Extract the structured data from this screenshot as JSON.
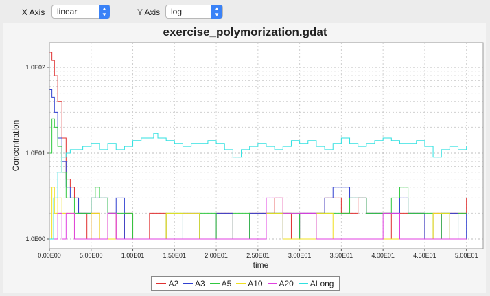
{
  "toolbar": {
    "x_axis_label": "X Axis",
    "x_axis_value": "linear",
    "y_axis_label": "Y Axis",
    "y_axis_value": "log"
  },
  "chart_data": {
    "type": "line",
    "title": "exercise_polymorization.gdat",
    "xlabel": "time",
    "ylabel": "Concentration",
    "xlim": [
      0,
      52
    ],
    "ylim_log10": [
      -0.1,
      0.22
    ],
    "y_scale": "log",
    "grid": true,
    "legend_placement": "bottom",
    "x_ticks": [
      0,
      5,
      10,
      15,
      20,
      25,
      30,
      35,
      40,
      45,
      50
    ],
    "x_tick_labels": [
      "0.00E00",
      "5.00E00",
      "1.00E01",
      "1.50E01",
      "2.00E01",
      "2.50E01",
      "3.00E01",
      "3.50E01",
      "4.00E01",
      "4.50E01",
      "5.00E01"
    ],
    "y_ticks": [
      1,
      10,
      100
    ],
    "y_tick_labels": [
      "1.0E00",
      "1.0E01",
      "1.0E02"
    ],
    "series": [
      {
        "name": "A2",
        "color": "#e03030",
        "x": [
          0,
          0.3,
          0.6,
          1,
          1.5,
          2,
          2.5,
          3,
          3.5,
          4,
          4.5,
          5,
          6,
          7,
          8,
          9,
          10,
          12,
          14,
          16,
          18,
          20,
          22,
          24,
          25,
          26,
          27,
          28,
          29,
          30,
          31,
          32,
          33,
          34,
          35,
          36,
          37,
          38,
          39,
          40,
          41,
          42,
          43,
          44,
          45,
          46,
          47,
          48,
          49,
          50
        ],
        "y": [
          150,
          120,
          80,
          40,
          15,
          5,
          4,
          3,
          2,
          2,
          1,
          2,
          1,
          2,
          1,
          2,
          1,
          2,
          1,
          1,
          1,
          2,
          1,
          2,
          2,
          2,
          3,
          2,
          1,
          2,
          2,
          2,
          3,
          3,
          2,
          2,
          3,
          2,
          2,
          2,
          1,
          2,
          2,
          2,
          1,
          2,
          1,
          2,
          2,
          3
        ]
      },
      {
        "name": "A3",
        "color": "#3040d0",
        "x": [
          0,
          0.3,
          0.6,
          1,
          1.5,
          2,
          2.5,
          3,
          3.5,
          4,
          5,
          6,
          7,
          8,
          9,
          10,
          12,
          14,
          16,
          18,
          20,
          22,
          24,
          26,
          28,
          30,
          32,
          33,
          34,
          35,
          36,
          37,
          38,
          39,
          40,
          41,
          42,
          43,
          44,
          45,
          46,
          47,
          48,
          49,
          50
        ],
        "y": [
          55,
          45,
          30,
          15,
          8,
          4,
          3,
          3,
          2,
          2,
          3,
          3,
          2,
          3,
          1,
          1,
          1,
          1,
          2,
          1,
          2,
          1,
          2,
          2,
          1,
          2,
          2,
          3,
          4,
          4,
          3,
          3,
          2,
          2,
          2,
          2,
          3,
          2,
          2,
          1,
          1,
          2,
          2,
          1,
          2
        ]
      },
      {
        "name": "A5",
        "color": "#30c840",
        "x": [
          0,
          0.3,
          0.6,
          1,
          1.5,
          2,
          2.5,
          3,
          4,
          5,
          5.5,
          6,
          7,
          8,
          10,
          12,
          14,
          16,
          18,
          20,
          22,
          24,
          26,
          28,
          30,
          32,
          34,
          36,
          38,
          40,
          41,
          42,
          43,
          44,
          45,
          46,
          47,
          48,
          49,
          50
        ],
        "y": [
          10,
          25,
          20,
          12,
          6,
          3,
          3,
          2,
          2,
          3,
          4,
          3,
          2,
          2,
          1,
          1,
          2,
          1,
          2,
          1,
          2,
          1,
          2,
          2,
          1,
          2,
          2,
          3,
          2,
          2,
          3,
          4,
          2,
          2,
          2,
          1,
          2,
          1,
          2,
          2
        ]
      },
      {
        "name": "A10",
        "color": "#f0e020",
        "x": [
          0,
          0.3,
          0.6,
          1,
          1.5,
          2,
          3,
          4,
          5,
          6,
          8,
          10,
          12,
          14,
          16,
          18,
          20,
          22,
          24,
          26,
          28,
          30,
          32,
          34,
          36,
          38,
          40,
          42,
          44,
          46,
          48,
          50
        ],
        "y": [
          1,
          4,
          2,
          3,
          2,
          2,
          1,
          1,
          2,
          1,
          1,
          1,
          1,
          2,
          2,
          1,
          1,
          1,
          1,
          2,
          1,
          1,
          2,
          1,
          1,
          1,
          1,
          1,
          1,
          2,
          1,
          1
        ]
      },
      {
        "name": "A20",
        "color": "#e040e0",
        "x": [
          0,
          0.5,
          1,
          1.5,
          2,
          3,
          4,
          5,
          6,
          7,
          8,
          10,
          12,
          14,
          16,
          18,
          20,
          22,
          24,
          26,
          28,
          30,
          32,
          34,
          36,
          38,
          40,
          42,
          44,
          46,
          48,
          50
        ],
        "y": [
          1,
          1,
          2,
          1,
          2,
          1,
          1,
          1,
          1,
          2,
          1,
          1,
          1,
          1,
          1,
          1,
          1,
          1,
          1,
          3,
          2,
          2,
          1,
          1,
          1,
          1,
          2,
          1,
          1,
          1,
          1,
          1
        ]
      },
      {
        "name": "ALong",
        "color": "#30e0e0",
        "x": [
          0,
          0.5,
          1,
          1.5,
          2,
          2.5,
          3,
          4,
          5,
          6,
          7,
          8,
          9,
          10,
          11,
          12,
          12.5,
          13,
          14,
          15,
          16,
          17,
          18,
          19,
          20,
          21,
          22,
          23,
          24,
          25,
          26,
          27,
          28,
          29,
          30,
          31,
          32,
          33,
          34,
          35,
          36,
          37,
          38,
          39,
          40,
          41,
          42,
          43,
          44,
          45,
          46,
          47,
          48,
          49,
          50
        ],
        "y": [
          1,
          3,
          6,
          9,
          10,
          11,
          11,
          12,
          13,
          11,
          13,
          11,
          12,
          14,
          15,
          15,
          17,
          15,
          14,
          13,
          12,
          13,
          13,
          14,
          13,
          11,
          9,
          11,
          12,
          13,
          12,
          11,
          12,
          14,
          13,
          14,
          12,
          11,
          13,
          15,
          13,
          12,
          13,
          14,
          15,
          14,
          13,
          13,
          14,
          12,
          9,
          11,
          12,
          11,
          12
        ]
      }
    ]
  }
}
